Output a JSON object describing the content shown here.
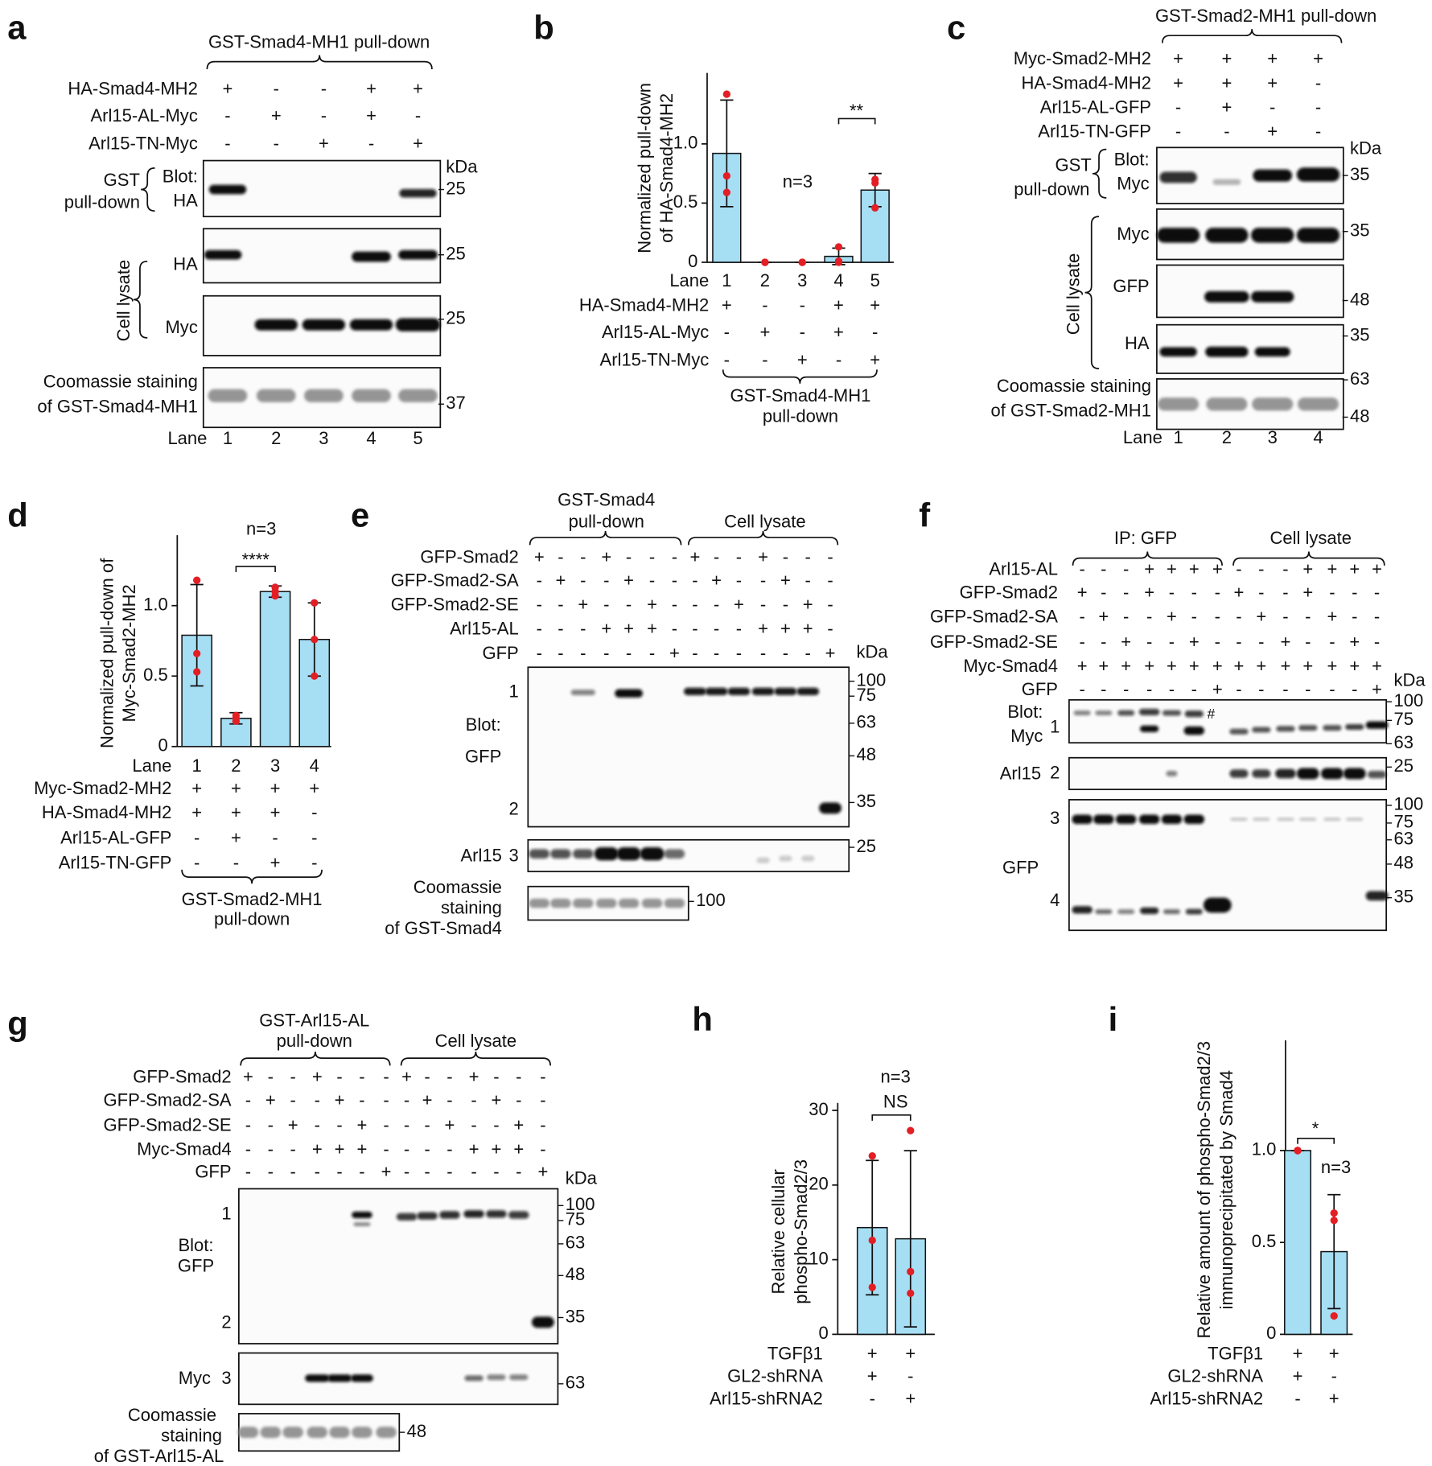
{
  "chart_data": [
    {
      "type": "bar",
      "letter": "b",
      "ylabel": [
        "Normalized pull-down",
        "of HA-Smad4-MH2"
      ],
      "category_label": "Lane",
      "categories": [
        "1",
        "2",
        "3",
        "4",
        "5"
      ],
      "values": [
        0.92,
        0,
        0,
        0.05,
        0.61
      ],
      "errors": [
        0.45,
        0,
        0,
        0.07,
        0.14
      ],
      "points": [
        [
          1.42,
          0.73,
          0.59
        ],
        [
          0,
          0,
          0
        ],
        [
          0,
          0,
          0
        ],
        [
          0.13,
          0.01,
          0
        ],
        [
          0.7,
          0.67,
          0.46
        ]
      ],
      "color": "#a6def4",
      "point_color": "#e31e24",
      "ylim": [
        0,
        1.6
      ],
      "yticks": [
        0,
        0.5,
        {
          "value": 1,
          "label": "1.0"
        }
      ],
      "annotations": [
        "n=3",
        "**"
      ],
      "conditions": [
        {
          "label": "HA-Smad4-MH2",
          "marks": [
            "+",
            "-",
            "-",
            "+",
            "+"
          ]
        },
        {
          "label": "Arl15-AL-Myc",
          "marks": [
            "-",
            "+",
            "-",
            "+",
            "-"
          ]
        },
        {
          "label": "Arl15-TN-Myc",
          "marks": [
            "-",
            "-",
            "+",
            "-",
            "+"
          ]
        }
      ],
      "group_label": [
        "GST-Smad4-MH1",
        "pull-down"
      ]
    },
    {
      "type": "bar",
      "letter": "d",
      "ylabel": [
        "Normalized pull-down of",
        "Myc-Smad2-MH2"
      ],
      "category_label": "Lane",
      "categories": [
        "1",
        "2",
        "3",
        "4"
      ],
      "values": [
        0.79,
        0.2,
        1.1,
        0.76
      ],
      "errors": [
        0.36,
        0.04,
        0.04,
        0.26
      ],
      "points": [
        [
          1.18,
          0.66,
          0.53
        ],
        [
          0.22,
          0.2,
          0.18
        ],
        [
          1.13,
          1.1,
          1.07
        ],
        [
          1.02,
          0.76,
          0.5
        ]
      ],
      "color": "#a6def4",
      "point_color": "#e31e24",
      "ylim": [
        0,
        1.5
      ],
      "yticks": [
        0,
        0.5,
        {
          "value": 1,
          "label": "1.0"
        }
      ],
      "annotations": [
        "n=3",
        "****"
      ],
      "conditions": [
        {
          "label": "Myc-Smad2-MH2",
          "marks": [
            "+",
            "+",
            "+",
            "+"
          ]
        },
        {
          "label": "HA-Smad4-MH2",
          "marks": [
            "+",
            "+",
            "+",
            "-"
          ]
        },
        {
          "label": "Arl15-AL-GFP",
          "marks": [
            "-",
            "+",
            "-",
            "-"
          ]
        },
        {
          "label": "Arl15-TN-GFP",
          "marks": [
            "-",
            "-",
            "+",
            "-"
          ]
        }
      ],
      "group_label": [
        "GST-Smad2-MH1",
        "pull-down"
      ]
    },
    {
      "type": "bar",
      "letter": "h",
      "ylabel": [
        "Relative cellular",
        "phospho-Smad2/3"
      ],
      "categories": [
        null,
        null
      ],
      "values": [
        14.3,
        12.8
      ],
      "errors": [
        9,
        11.8
      ],
      "points": [
        [
          23.9,
          12.6,
          6.3
        ],
        [
          27.3,
          8.4,
          5.5
        ]
      ],
      "color": "#a6def4",
      "point_color": "#e31e24",
      "ylim": [
        0,
        31
      ],
      "yticks": [
        0,
        10,
        20,
        30
      ],
      "annotations": [
        "n=3",
        "NS"
      ],
      "conditions": [
        {
          "label": "TGFβ1",
          "marks": [
            "+",
            "+"
          ]
        },
        {
          "label": "GL2-shRNA",
          "marks": [
            "+",
            "-"
          ]
        },
        {
          "label": "Arl15-shRNA2",
          "marks": [
            "-",
            "+"
          ]
        }
      ]
    },
    {
      "type": "bar",
      "letter": "i",
      "ylabel": [
        "Relative amount of phospho-Smad2/3",
        "immunoprecipitated by Smad4"
      ],
      "categories": [
        null,
        null
      ],
      "values": [
        1,
        0.45
      ],
      "errors": [
        0,
        0.31
      ],
      "points": [
        [
          1,
          1,
          1
        ],
        [
          0.66,
          0.62,
          0.1
        ]
      ],
      "color": "#a6def4",
      "point_color": "#e31e24",
      "ylim": [
        0,
        1.6
      ],
      "yticks": [
        0,
        0.5,
        {
          "value": 1,
          "label": "1.0"
        }
      ],
      "annotations": [
        "*",
        "n=3"
      ],
      "conditions": [
        {
          "label": "TGFβ1",
          "marks": [
            "+",
            "+"
          ]
        },
        {
          "label": "GL2-shRNA",
          "marks": [
            "+",
            "-"
          ]
        },
        {
          "label": "Arl15-shRNA2",
          "marks": [
            "-",
            "+"
          ]
        }
      ]
    }
  ],
  "blots": {
    "a": {
      "letter": "a",
      "headers": [
        "GST-Smad4-MH1 pull-down"
      ],
      "conditions": [
        {
          "label": "HA-Smad4-MH2",
          "marks": [
            "+",
            "-",
            "-",
            "+",
            "+"
          ]
        },
        {
          "label": "Arl15-AL-Myc",
          "marks": [
            "-",
            "+",
            "-",
            "+",
            "-"
          ]
        },
        {
          "label": "Arl15-TN-Myc",
          "marks": [
            "-",
            "-",
            "+",
            "-",
            "+"
          ]
        }
      ],
      "unit": "kDa",
      "markers": [
        25,
        25,
        25,
        37
      ],
      "labels": [
        "GST",
        "pull-down",
        "Blot:",
        "HA",
        "Cell lysate",
        "HA",
        "Myc",
        "Coomassie staining",
        "of GST-Smad4-MH1"
      ],
      "lane_label": "Lane",
      "lanes": [
        "1",
        "2",
        "3",
        "4",
        "5"
      ]
    },
    "c": {
      "letter": "c",
      "headers": [
        "GST-Smad2-MH1 pull-down"
      ],
      "conditions": [
        {
          "label": "Myc-Smad2-MH2",
          "marks": [
            "+",
            "+",
            "+",
            "+"
          ]
        },
        {
          "label": "HA-Smad4-MH2",
          "marks": [
            "+",
            "+",
            "+",
            "-"
          ]
        },
        {
          "label": "Arl15-AL-GFP",
          "marks": [
            "-",
            "+",
            "-",
            "-"
          ]
        },
        {
          "label": "Arl15-TN-GFP",
          "marks": [
            "-",
            "-",
            "+",
            "-"
          ]
        }
      ],
      "unit": "kDa",
      "markers": [
        35,
        35,
        48,
        35,
        63,
        48
      ],
      "labels": [
        "GST",
        "pull-down",
        "Blot:",
        "Myc",
        "Cell lysate",
        "Myc",
        "GFP",
        "HA",
        "Coomassie staining",
        "of GST-Smad2-MH1"
      ],
      "lane_label": "Lane",
      "lanes": [
        "1",
        "2",
        "3",
        "4"
      ]
    },
    "e": {
      "letter": "e",
      "headers": [
        "GST-Smad4",
        "pull-down",
        "Cell lysate"
      ],
      "conditions": [
        {
          "label": "GFP-Smad2",
          "marks": [
            "+",
            "-",
            "-",
            "+",
            "-",
            "-",
            "-",
            "+",
            "-",
            "-",
            "+",
            "-",
            "-",
            "-"
          ]
        },
        {
          "label": "GFP-Smad2-SA",
          "marks": [
            "-",
            "+",
            "-",
            "-",
            "+",
            "-",
            "-",
            "-",
            "+",
            "-",
            "-",
            "+",
            "-",
            "-"
          ]
        },
        {
          "label": "GFP-Smad2-SE",
          "marks": [
            "-",
            "-",
            "+",
            "-",
            "-",
            "+",
            "-",
            "-",
            "-",
            "+",
            "-",
            "-",
            "+",
            "-"
          ]
        },
        {
          "label": "Arl15-AL",
          "marks": [
            "-",
            "-",
            "-",
            "+",
            "+",
            "+",
            "-",
            "-",
            "-",
            "-",
            "+",
            "+",
            "+",
            "-"
          ]
        },
        {
          "label": "GFP",
          "marks": [
            "-",
            "-",
            "-",
            "-",
            "-",
            "-",
            "+",
            "-",
            "-",
            "-",
            "-",
            "-",
            "-",
            "+"
          ]
        }
      ],
      "unit": "kDa",
      "markers": [
        100,
        75,
        63,
        48,
        35,
        25,
        100
      ],
      "labels": [
        "1",
        "Blot:",
        "GFP",
        "2",
        "Arl15",
        "3",
        "Coomassie",
        "staining",
        "of GST-Smad4"
      ]
    },
    "f": {
      "letter": "f",
      "headers": [
        "IP: GFP",
        "Cell lysate"
      ],
      "conditions": [
        {
          "label": "Arl15-AL",
          "marks": [
            "-",
            "-",
            "-",
            "+",
            "+",
            "+",
            "+",
            "-",
            "-",
            "-",
            "+",
            "+",
            "+",
            "+"
          ]
        },
        {
          "label": "GFP-Smad2",
          "marks": [
            "+",
            "-",
            "-",
            "+",
            "-",
            "-",
            "-",
            "+",
            "-",
            "-",
            "+",
            "-",
            "-",
            "-"
          ]
        },
        {
          "label": "GFP-Smad2-SA",
          "marks": [
            "-",
            "+",
            "-",
            "-",
            "+",
            "-",
            "-",
            "-",
            "+",
            "-",
            "-",
            "+",
            "-",
            "-"
          ]
        },
        {
          "label": "GFP-Smad2-SE",
          "marks": [
            "-",
            "-",
            "+",
            "-",
            "-",
            "+",
            "-",
            "-",
            "-",
            "+",
            "-",
            "-",
            "+",
            "-"
          ]
        },
        {
          "label": "Myc-Smad4",
          "marks": [
            "+",
            "+",
            "+",
            "+",
            "+",
            "+",
            "+",
            "+",
            "+",
            "+",
            "+",
            "+",
            "+",
            "+"
          ]
        },
        {
          "label": "GFP",
          "marks": [
            "-",
            "-",
            "-",
            "-",
            "-",
            "-",
            "+",
            "-",
            "-",
            "-",
            "-",
            "-",
            "-",
            "+"
          ]
        }
      ],
      "unit": "kDa",
      "markers": [
        100,
        75,
        63,
        25,
        100,
        75,
        63,
        48,
        35
      ],
      "labels": [
        "Blot:",
        "Myc",
        "1",
        "#",
        "Arl15",
        "2",
        "3",
        "GFP",
        "4"
      ]
    },
    "g": {
      "letter": "g",
      "headers": [
        "GST-Arl15-AL",
        "pull-down",
        "Cell lysate"
      ],
      "conditions": [
        {
          "label": "GFP-Smad2",
          "marks": [
            "+",
            "-",
            "-",
            "+",
            "-",
            "-",
            "-",
            "+",
            "-",
            "-",
            "+",
            "-",
            "-",
            "-"
          ]
        },
        {
          "label": "GFP-Smad2-SA",
          "marks": [
            "-",
            "+",
            "-",
            "-",
            "+",
            "-",
            "-",
            "-",
            "+",
            "-",
            "-",
            "+",
            "-",
            "-"
          ]
        },
        {
          "label": "GFP-Smad2-SE",
          "marks": [
            "-",
            "-",
            "+",
            "-",
            "-",
            "+",
            "-",
            "-",
            "-",
            "+",
            "-",
            "-",
            "+",
            "-"
          ]
        },
        {
          "label": "Myc-Smad4",
          "marks": [
            "-",
            "-",
            "-",
            "+",
            "+",
            "+",
            "-",
            "-",
            "-",
            "-",
            "+",
            "+",
            "+",
            "-"
          ]
        },
        {
          "label": "GFP",
          "marks": [
            "-",
            "-",
            "-",
            "-",
            "-",
            "-",
            "+",
            "-",
            "-",
            "-",
            "-",
            "-",
            "-",
            "+"
          ]
        }
      ],
      "unit": "kDa",
      "markers": [
        100,
        75,
        63,
        48,
        35,
        63,
        48
      ],
      "labels": [
        "1",
        "Blot:",
        "GFP",
        "2",
        "Myc",
        "3",
        "Coomassie",
        "staining",
        "of GST-Arl15-AL"
      ]
    }
  }
}
